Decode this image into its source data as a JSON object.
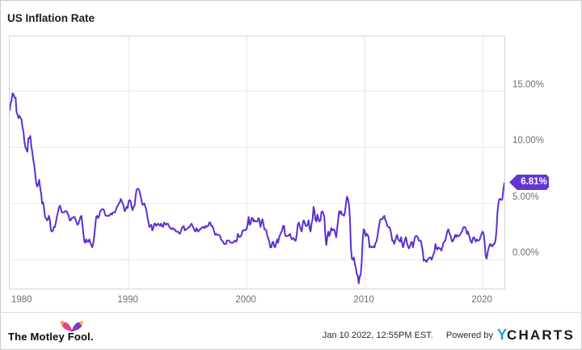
{
  "header": {
    "title": "US Inflation Rate"
  },
  "chart_data": {
    "type": "line",
    "title": "US Inflation Rate",
    "series_name": "US Inflation Rate",
    "unit": "percent",
    "frequency": "monthly",
    "start": {
      "year": 1979,
      "month": 12
    },
    "end": {
      "year": 2021,
      "month": 11
    },
    "x_axis": {
      "min": 1979.92,
      "max": 2021.84,
      "ticks": [
        1980,
        1990,
        2000,
        2010,
        2020
      ],
      "tick_labels": [
        "1980",
        "1990",
        "2000",
        "2010",
        "2020"
      ]
    },
    "y_axis": {
      "min": -2.57,
      "max": 19.86,
      "gridlines": [
        0,
        5,
        10,
        15
      ],
      "tick_labels": [
        "0.00%",
        "5.00%",
        "10.00%",
        "15.00%"
      ],
      "labels_position": "right"
    },
    "grid": true,
    "legend": "none",
    "last_value": 6.81,
    "last_value_label": "6.81%",
    "colors": {
      "line": "#5c2fd0",
      "badge_bg": "#6435d2",
      "badge_text": "#ffffff",
      "grid": "#e7e7e7",
      "plot_border": "#d4d4d4",
      "axis_text": "#6f6f6f"
    },
    "values": [
      13.3,
      13.9,
      14.2,
      14.8,
      14.7,
      14.4,
      14.4,
      13.1,
      12.9,
      12.6,
      12.8,
      12.6,
      12.5,
      11.8,
      11.4,
      10.5,
      10.0,
      9.8,
      9.6,
      10.8,
      10.8,
      11.0,
      10.1,
      9.6,
      8.9,
      8.4,
      7.6,
      6.8,
      6.5,
      6.7,
      7.1,
      6.4,
      5.9,
      5.0,
      5.1,
      4.6,
      3.8,
      3.7,
      3.5,
      3.6,
      3.9,
      3.5,
      2.6,
      2.5,
      2.6,
      2.9,
      2.9,
      3.3,
      3.8,
      4.2,
      4.6,
      4.8,
      4.6,
      4.2,
      4.2,
      4.2,
      4.3,
      4.3,
      4.3,
      4.1,
      3.9,
      3.5,
      3.5,
      3.7,
      3.7,
      3.8,
      3.8,
      3.6,
      3.3,
      3.1,
      3.2,
      3.5,
      3.8,
      3.9,
      3.1,
      2.3,
      1.6,
      1.5,
      1.8,
      1.6,
      1.6,
      1.8,
      1.5,
      1.3,
      1.1,
      1.5,
      2.1,
      3.0,
      3.8,
      3.9,
      3.7,
      3.9,
      4.3,
      4.4,
      4.5,
      4.5,
      4.4,
      4.0,
      3.9,
      3.9,
      3.9,
      3.9,
      4.0,
      4.1,
      4.0,
      4.2,
      4.2,
      4.2,
      4.4,
      4.7,
      4.8,
      5.0,
      5.1,
      5.4,
      5.2,
      5.0,
      4.7,
      4.3,
      4.5,
      4.7,
      4.6,
      5.2,
      5.3,
      5.2,
      4.7,
      4.4,
      4.7,
      4.8,
      5.6,
      6.2,
      6.3,
      6.3,
      6.1,
      5.7,
      5.3,
      4.9,
      4.9,
      5.0,
      4.7,
      4.4,
      3.8,
      3.4,
      2.9,
      3.0,
      3.1,
      2.6,
      2.8,
      3.2,
      3.2,
      3.0,
      3.1,
      3.2,
      3.1,
      3.0,
      3.2,
      3.0,
      2.9,
      3.3,
      3.2,
      3.1,
      3.2,
      3.2,
      3.0,
      2.8,
      2.8,
      2.7,
      2.8,
      2.7,
      2.7,
      2.5,
      2.5,
      2.5,
      2.4,
      2.3,
      2.5,
      2.8,
      2.9,
      3.0,
      2.6,
      2.7,
      2.7,
      2.8,
      2.9,
      2.9,
      3.1,
      3.2,
      3.0,
      2.8,
      2.6,
      2.5,
      2.8,
      2.6,
      2.5,
      2.7,
      2.7,
      2.8,
      2.9,
      2.9,
      2.8,
      3.0,
      2.9,
      3.0,
      3.0,
      3.3,
      3.3,
      3.0,
      3.0,
      2.8,
      2.5,
      2.2,
      2.3,
      2.2,
      2.2,
      2.2,
      2.1,
      1.8,
      1.7,
      1.6,
      1.4,
      1.4,
      1.4,
      1.7,
      1.7,
      1.7,
      1.6,
      1.5,
      1.5,
      1.5,
      1.6,
      1.7,
      1.6,
      1.7,
      2.3,
      2.1,
      2.0,
      2.1,
      2.3,
      2.6,
      2.6,
      2.6,
      2.7,
      2.7,
      3.2,
      3.8,
      3.1,
      3.2,
      3.7,
      3.7,
      3.4,
      3.5,
      3.4,
      3.4,
      3.4,
      3.7,
      3.5,
      2.9,
      3.3,
      3.6,
      3.2,
      2.7,
      2.7,
      2.6,
      2.1,
      1.9,
      1.6,
      1.1,
      1.1,
      1.5,
      1.6,
      1.2,
      1.1,
      1.5,
      1.8,
      1.5,
      2.0,
      2.2,
      2.4,
      2.6,
      3.0,
      3.0,
      2.2,
      2.1,
      2.1,
      2.1,
      2.2,
      2.3,
      2.0,
      1.8,
      1.9,
      1.9,
      1.7,
      1.7,
      2.3,
      3.1,
      3.3,
      3.0,
      2.7,
      2.5,
      3.2,
      3.5,
      3.3,
      3.0,
      3.0,
      3.1,
      3.5,
      2.8,
      2.5,
      3.2,
      3.6,
      4.7,
      4.3,
      3.5,
      3.4,
      4.0,
      3.6,
      3.4,
      3.5,
      4.2,
      4.3,
      4.1,
      3.8,
      2.1,
      1.3,
      2.0,
      2.5,
      2.1,
      2.4,
      2.8,
      2.6,
      2.7,
      2.7,
      2.4,
      2.0,
      2.8,
      3.5,
      4.3,
      4.1,
      4.3,
      4.0,
      4.0,
      3.9,
      4.2,
      5.0,
      5.6,
      5.4,
      4.9,
      3.7,
      1.1,
      0.1,
      0.0,
      0.2,
      -0.4,
      -0.7,
      -1.3,
      -1.4,
      -2.1,
      -1.5,
      -1.3,
      -0.2,
      1.8,
      2.7,
      2.6,
      2.1,
      2.3,
      2.2,
      2.0,
      1.1,
      1.2,
      1.1,
      1.1,
      1.2,
      1.1,
      1.5,
      1.6,
      2.1,
      2.7,
      3.2,
      3.6,
      3.6,
      3.6,
      3.8,
      3.9,
      3.5,
      3.4,
      3.0,
      2.9,
      2.9,
      2.7,
      2.3,
      1.7,
      1.7,
      1.4,
      1.7,
      2.0,
      2.2,
      1.8,
      1.7,
      1.6,
      2.0,
      1.5,
      1.1,
      1.4,
      1.8,
      2.0,
      1.5,
      1.2,
      1.0,
      1.2,
      1.5,
      1.6,
      1.1,
      1.5,
      2.0,
      2.1,
      2.1,
      2.0,
      1.7,
      1.7,
      1.7,
      1.3,
      0.8,
      -0.1,
      0.0,
      -0.1,
      -0.2,
      0.0,
      0.1,
      0.2,
      0.2,
      0.0,
      0.2,
      0.5,
      0.7,
      1.4,
      1.0,
      0.9,
      1.1,
      1.0,
      1.0,
      0.8,
      1.1,
      1.5,
      1.6,
      1.7,
      2.1,
      2.5,
      2.7,
      2.4,
      2.2,
      1.9,
      1.6,
      1.7,
      1.9,
      2.2,
      2.0,
      2.2,
      2.1,
      2.1,
      2.2,
      2.4,
      2.5,
      2.8,
      2.9,
      2.9,
      2.7,
      2.3,
      2.5,
      2.2,
      1.9,
      1.6,
      1.5,
      1.9,
      2.0,
      1.8,
      1.6,
      1.8,
      1.7,
      1.7,
      1.8,
      2.1,
      2.3,
      2.5,
      2.3,
      1.5,
      0.3,
      0.1,
      0.6,
      1.0,
      1.3,
      1.4,
      1.2,
      1.2,
      1.4,
      1.4,
      1.7,
      2.6,
      4.2,
      5.0,
      5.4,
      5.4,
      5.3,
      5.4,
      6.2,
      6.81
    ]
  },
  "footer": {
    "brand": "The Motley Fool.",
    "timestamp": "Jan 10 2022, 12:55PM EST.",
    "powered_by_label": "Powered by",
    "ycharts_y": "Y",
    "ycharts_rest": "CHARTS",
    "colors": {
      "ycharts_y": "#1e9bf0",
      "ycharts_text": "#17191e",
      "fool_pink": "#e8418c",
      "fool_purple": "#7e3bd0",
      "fool_gold_left": "#ff9e1b",
      "fool_gold_right": "#ffc222",
      "fool_text": "#0b0b0b"
    }
  }
}
